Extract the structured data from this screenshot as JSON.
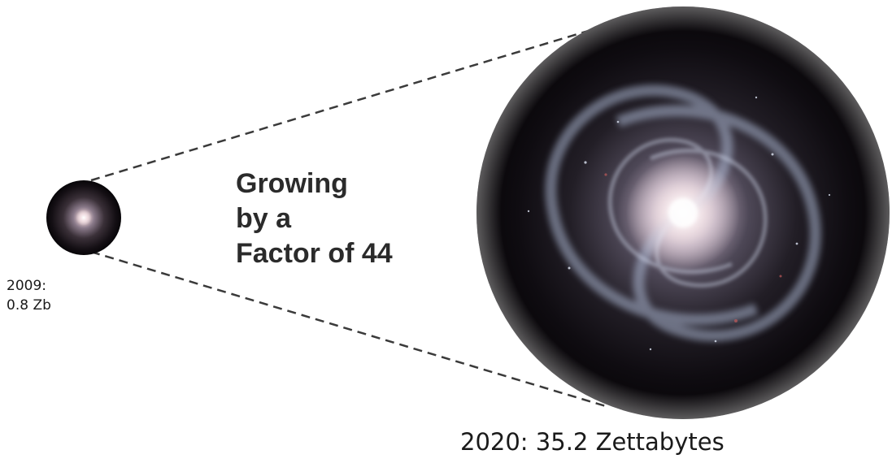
{
  "small_label": {
    "year": "2009:",
    "amount": "0.8 Zb"
  },
  "headline": {
    "line1": "Growing",
    "line2": "by a",
    "line3": "Factor of 44"
  },
  "large_label": "2020: 35.2 Zettabytes",
  "colors": {
    "background": "#ffffff",
    "dash": "#3a3a3a",
    "galaxy_core": "#fff6f4",
    "galaxy_arm": "#b9c6df",
    "space": "#0c0a0f",
    "text": "#1a1a1a"
  }
}
